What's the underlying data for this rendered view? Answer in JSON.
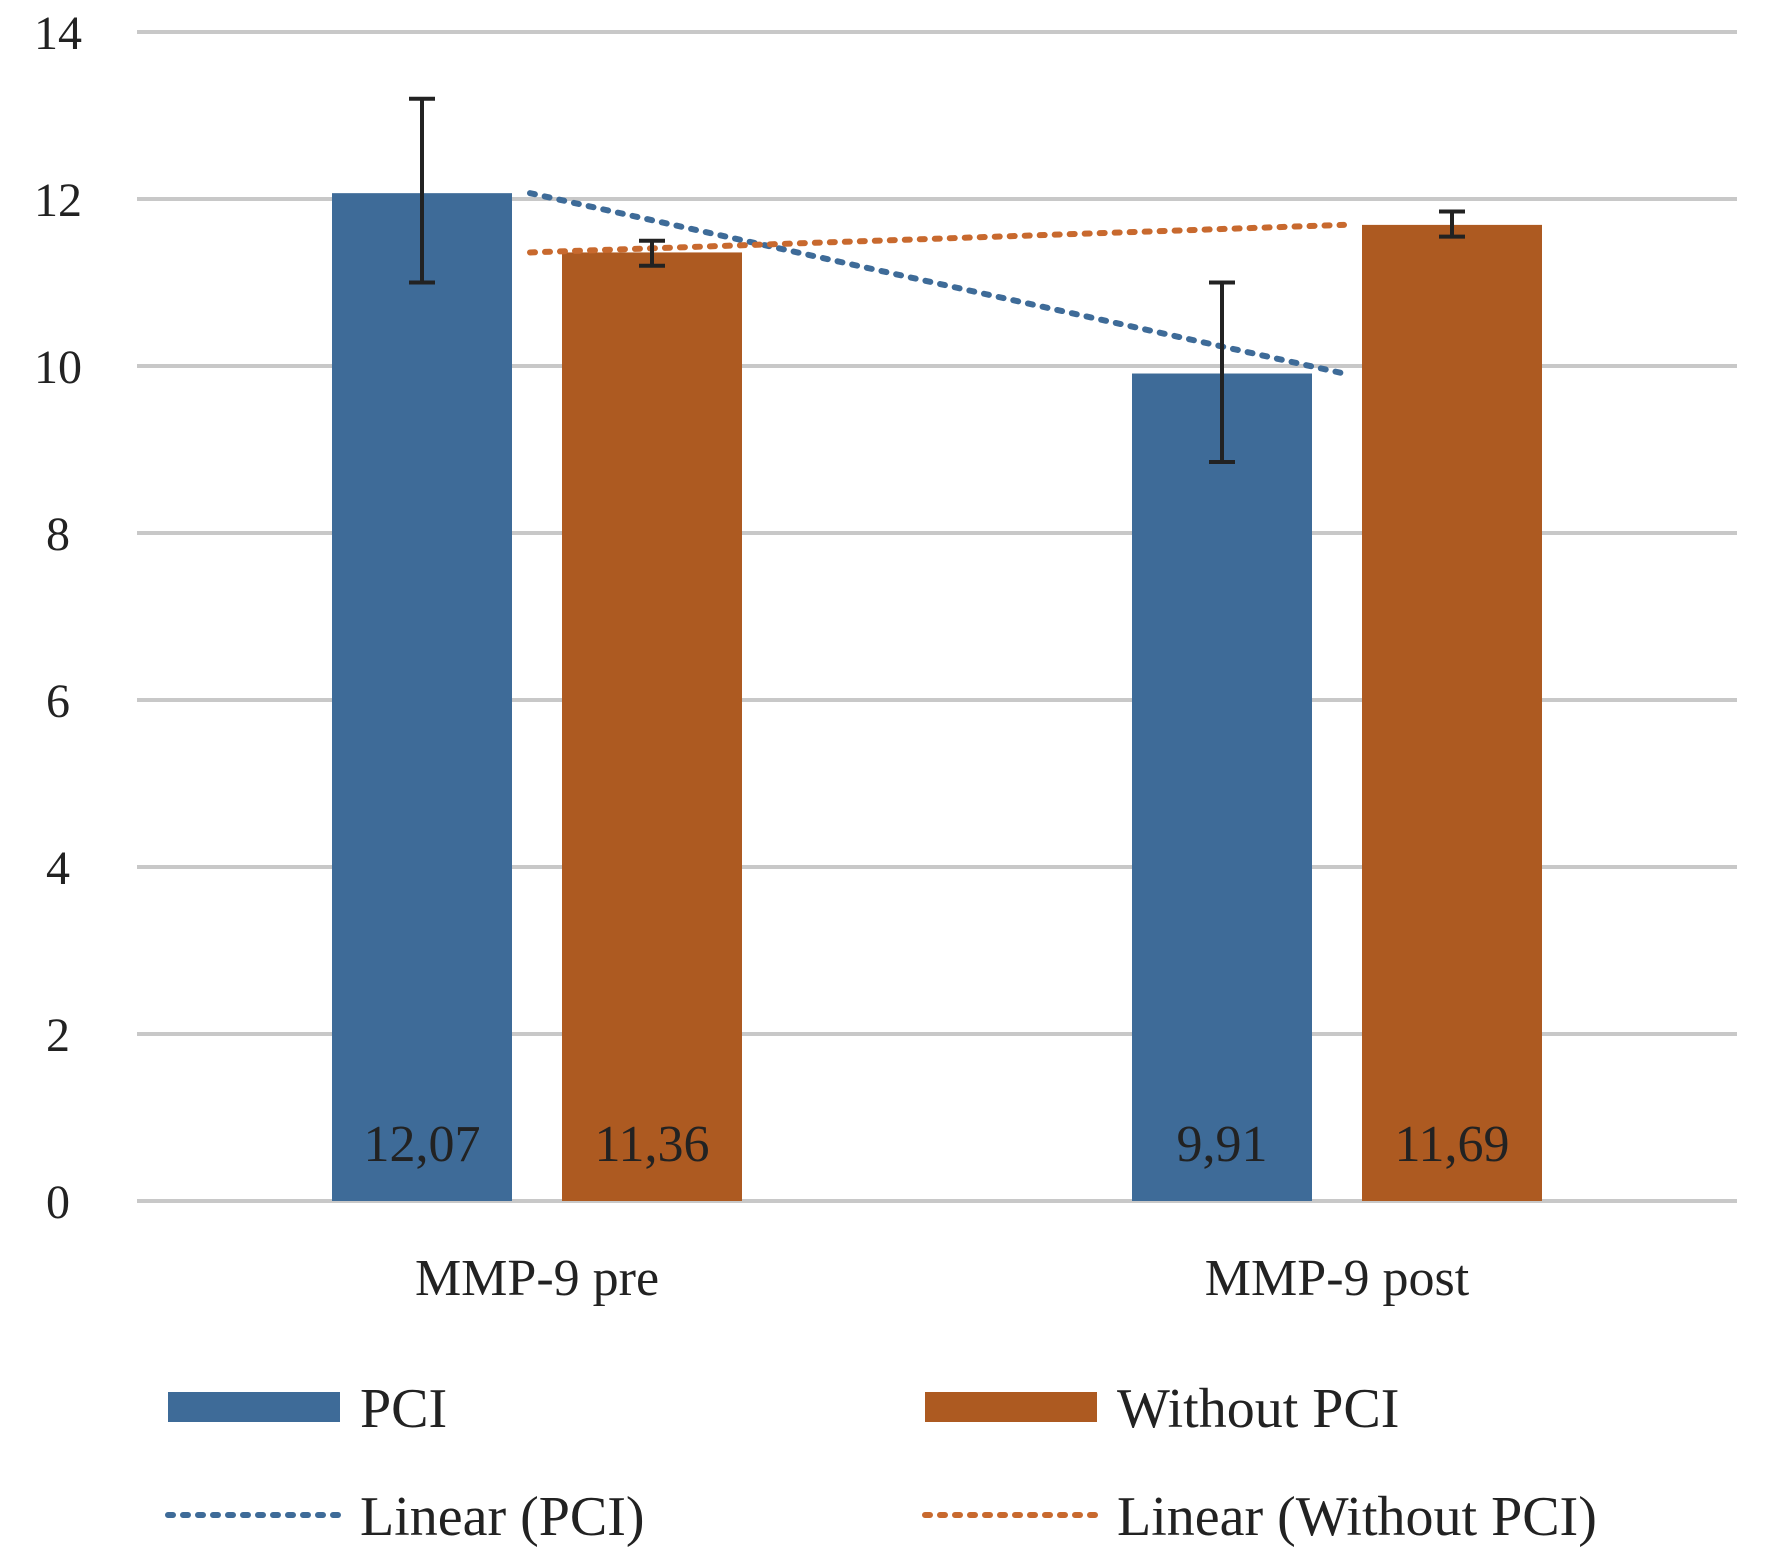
{
  "chart_data": {
    "type": "bar",
    "categories": [
      "MMP-9 pre",
      "MMP-9 post"
    ],
    "series": [
      {
        "name": "PCI",
        "color": "#3e6b98",
        "values": [
          12.07,
          9.91
        ],
        "labels": [
          "12,07",
          "9,91"
        ],
        "error_low": [
          11.0,
          8.85
        ],
        "error_high": [
          13.2,
          11.0
        ]
      },
      {
        "name": "Without PCI",
        "color": "#ad5a21",
        "values": [
          11.36,
          11.69
        ],
        "labels": [
          "11,36",
          "11,69"
        ],
        "error_low": [
          11.2,
          11.55
        ],
        "error_high": [
          11.5,
          11.85
        ]
      }
    ],
    "trendlines": [
      {
        "name": "Linear (PCI)",
        "color": "#3e6b98",
        "series": "PCI",
        "start": 12.07,
        "end": 9.91
      },
      {
        "name": "Linear (Without PCI)",
        "color": "#c8692e",
        "series": "Without PCI",
        "start": 11.36,
        "end": 11.69
      }
    ],
    "y_ticks": [
      "0",
      "2",
      "4",
      "6",
      "8",
      "10",
      "12",
      "14"
    ],
    "ylim": [
      0,
      14
    ],
    "grid": true,
    "legend_position": "bottom",
    "title": "",
    "xlabel": "",
    "ylabel": ""
  }
}
